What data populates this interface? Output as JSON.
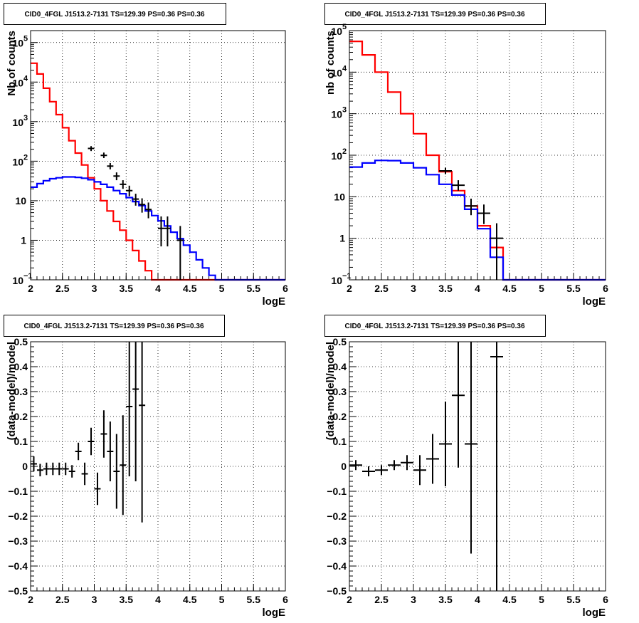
{
  "chart_data": [
    {
      "type": "line",
      "title": "CID0_4FGL J1513.2-7131 TS=129.39 PS=0.36 PS=0.36",
      "xlabel": "logE",
      "ylabel": "Nb of counts",
      "xlim": [
        2,
        6
      ],
      "ylim": [
        0.1,
        200000
      ],
      "log_y": true,
      "grid": true,
      "x_ticks": [
        "2",
        "2.5",
        "3",
        "3.5",
        "4",
        "4.5",
        "5",
        "5.5",
        "6"
      ],
      "y_ticks": [
        {
          "value": 0.1,
          "base": "10",
          "exp": "−1"
        },
        {
          "value": 1,
          "text": "1"
        },
        {
          "value": 10,
          "text": "10"
        },
        {
          "value": 100,
          "base": "10",
          "exp": "2"
        },
        {
          "value": 1000,
          "base": "10",
          "exp": "3"
        },
        {
          "value": 10000,
          "base": "10",
          "exp": "4"
        },
        {
          "value": 100000,
          "base": "10",
          "exp": "5"
        }
      ],
      "bin_width": 0.1,
      "series": [
        {
          "color": "#ff0000",
          "kind": "step",
          "values": [
            30000,
            16000,
            7000,
            3200,
            1500,
            700,
            330,
            160,
            80,
            38,
            20,
            10,
            5.5,
            3,
            1.8,
            1,
            0.55,
            0.3,
            0.17,
            0.1,
            0.1,
            0.1,
            0.1,
            0.1,
            0.1,
            0.1,
            0.1,
            0.1,
            0.1,
            0.1,
            0.1,
            0.1,
            0.1,
            0.1,
            0.1,
            0.1,
            0.1,
            0.1,
            0.1,
            0.1
          ]
        },
        {
          "color": "#0000ff",
          "kind": "step",
          "values": [
            22,
            27,
            32,
            36,
            38,
            40,
            40,
            39,
            37,
            34,
            30,
            26,
            22,
            18,
            15,
            12,
            9.5,
            7.5,
            5.5,
            4.2,
            3.1,
            2.3,
            1.6,
            1.1,
            0.75,
            0.5,
            0.32,
            0.2,
            0.13,
            0.1,
            0.1,
            0.1,
            0.1,
            0.1,
            0.1,
            0.1,
            0.1,
            0.1,
            0.1,
            0.1
          ]
        },
        {
          "color": "#000000",
          "kind": "errorbar",
          "points": [
            {
              "x": 2.95,
              "y": 210,
              "lo": 180,
              "hi": 240
            },
            {
              "x": 3.15,
              "y": 140,
              "lo": 120,
              "hi": 165
            },
            {
              "x": 3.25,
              "y": 75,
              "lo": 62,
              "hi": 90
            },
            {
              "x": 3.35,
              "y": 42,
              "lo": 33,
              "hi": 52
            },
            {
              "x": 3.45,
              "y": 26,
              "lo": 20,
              "hi": 33
            },
            {
              "x": 3.55,
              "y": 18,
              "lo": 13,
              "hi": 24
            },
            {
              "x": 3.65,
              "y": 11,
              "lo": 7.5,
              "hi": 15
            },
            {
              "x": 3.75,
              "y": 8,
              "lo": 5,
              "hi": 11.5
            },
            {
              "x": 3.85,
              "y": 6,
              "lo": 3.6,
              "hi": 9
            },
            {
              "x": 4.05,
              "y": 2,
              "lo": 0.7,
              "hi": 4
            },
            {
              "x": 4.15,
              "y": 2,
              "lo": 0.7,
              "hi": 4
            },
            {
              "x": 4.35,
              "y": 1,
              "lo": 0.1,
              "hi": 2.3
            }
          ]
        }
      ]
    },
    {
      "type": "line",
      "title": "CID0_4FGL J1513.2-7131 TS=129.39 PS=0.36 PS=0.36",
      "xlabel": "logE",
      "ylabel": "nb of counts",
      "xlim": [
        2,
        6
      ],
      "ylim": [
        0.1,
        100000
      ],
      "log_y": true,
      "grid": true,
      "x_ticks": [
        "2",
        "2.5",
        "3",
        "3.5",
        "4",
        "4.5",
        "5",
        "5.5",
        "6"
      ],
      "y_ticks": [
        {
          "value": 0.1,
          "base": "10",
          "exp": "−1"
        },
        {
          "value": 1,
          "text": "1"
        },
        {
          "value": 10,
          "text": "10"
        },
        {
          "value": 100,
          "base": "10",
          "exp": "2"
        },
        {
          "value": 1000,
          "base": "10",
          "exp": "3"
        },
        {
          "value": 10000,
          "base": "10",
          "exp": "4"
        },
        {
          "value": 100000,
          "base": "10",
          "exp": "5"
        }
      ],
      "bin_width": 0.2,
      "series": [
        {
          "color": "#ff0000",
          "kind": "step",
          "values": [
            55000,
            26000,
            10000,
            3300,
            1000,
            330,
            100,
            40,
            14,
            6,
            2,
            0.6,
            0.1,
            0.1,
            0.1,
            0.1,
            0.1,
            0.1,
            0.1,
            0.1
          ]
        },
        {
          "color": "#0000ff",
          "kind": "step",
          "values": [
            52,
            65,
            75,
            74,
            65,
            50,
            34,
            20,
            11,
            5,
            1.7,
            0.35,
            0.1,
            0.1,
            0.1,
            0.1,
            0.1,
            0.1,
            0.1,
            0.1
          ]
        },
        {
          "color": "#000000",
          "kind": "errorbar",
          "points": [
            {
              "x": 3.5,
              "y": 42,
              "lo": 35,
              "hi": 50
            },
            {
              "x": 3.7,
              "y": 19,
              "lo": 14,
              "hi": 25
            },
            {
              "x": 3.9,
              "y": 6,
              "lo": 3.6,
              "hi": 9
            },
            {
              "x": 4.1,
              "y": 4,
              "lo": 2.2,
              "hi": 6.5
            },
            {
              "x": 4.3,
              "y": 1,
              "lo": 0.1,
              "hi": 2.3
            }
          ]
        }
      ]
    },
    {
      "type": "scatter",
      "title": "CID0_4FGL J1513.2-7131 TS=129.39 PS=0.36 PS=0.36",
      "xlabel": "logE",
      "ylabel": "(data-model)/model",
      "xlim": [
        2,
        6
      ],
      "ylim": [
        -0.5,
        0.5
      ],
      "grid": true,
      "x_ticks": [
        "2",
        "2.5",
        "3",
        "3.5",
        "4",
        "4.5",
        "5",
        "5.5",
        "6"
      ],
      "y_ticks": [
        "−0.5",
        "−0.4",
        "−0.3",
        "−0.2",
        "−0.1",
        "0",
        "0.1",
        "0.2",
        "0.3",
        "0.4",
        "0.5"
      ],
      "points": [
        {
          "x": 2.05,
          "y": 0.01,
          "err": 0.03
        },
        {
          "x": 2.15,
          "y": -0.015,
          "err": 0.025
        },
        {
          "x": 2.25,
          "y": -0.01,
          "err": 0.025
        },
        {
          "x": 2.35,
          "y": -0.01,
          "err": 0.025
        },
        {
          "x": 2.45,
          "y": -0.01,
          "err": 0.025
        },
        {
          "x": 2.55,
          "y": -0.01,
          "err": 0.025
        },
        {
          "x": 2.65,
          "y": -0.02,
          "err": 0.025
        },
        {
          "x": 2.75,
          "y": 0.06,
          "err": 0.035
        },
        {
          "x": 2.85,
          "y": -0.03,
          "err": 0.045
        },
        {
          "x": 2.95,
          "y": 0.1,
          "err": 0.055
        },
        {
          "x": 3.05,
          "y": -0.09,
          "err": 0.065
        },
        {
          "x": 3.15,
          "y": 0.13,
          "err": 0.095
        },
        {
          "x": 3.25,
          "y": 0.06,
          "err": 0.12
        },
        {
          "x": 3.35,
          "y": -0.02,
          "err": 0.15
        },
        {
          "x": 3.45,
          "y": 0.005,
          "err": 0.2
        },
        {
          "x": 3.55,
          "y": 0.24,
          "err": 0.28
        },
        {
          "x": 3.65,
          "y": 0.31,
          "err": 0.37
        },
        {
          "x": 3.75,
          "y": 0.245,
          "err": 0.47
        }
      ]
    },
    {
      "type": "scatter",
      "title": "CID0_4FGL J1513.2-7131 TS=129.39 PS=0.36 PS=0.36",
      "xlabel": "logE",
      "ylabel": "(data-model)/model",
      "xlim": [
        2,
        6
      ],
      "ylim": [
        -0.5,
        0.5
      ],
      "grid": true,
      "x_ticks": [
        "2",
        "2.5",
        "3",
        "3.5",
        "4",
        "4.5",
        "5",
        "5.5",
        "6"
      ],
      "y_ticks": [
        "−0.5",
        "−0.4",
        "−0.3",
        "−0.2",
        "−0.1",
        "0",
        "0.1",
        "0.2",
        "0.3",
        "0.4",
        "0.5"
      ],
      "points": [
        {
          "x": 2.1,
          "y": 0.005,
          "err": 0.02
        },
        {
          "x": 2.3,
          "y": -0.02,
          "err": 0.02
        },
        {
          "x": 2.5,
          "y": -0.015,
          "err": 0.02
        },
        {
          "x": 2.7,
          "y": 0.005,
          "err": 0.02
        },
        {
          "x": 2.9,
          "y": 0.015,
          "err": 0.03
        },
        {
          "x": 3.1,
          "y": -0.015,
          "err": 0.06
        },
        {
          "x": 3.3,
          "y": 0.03,
          "err": 0.1
        },
        {
          "x": 3.5,
          "y": 0.09,
          "err": 0.17
        },
        {
          "x": 3.7,
          "y": 0.285,
          "err": 0.29
        },
        {
          "x": 3.9,
          "y": 0.09,
          "err": 0.44
        },
        {
          "x": 4.3,
          "y": 0.44,
          "err": 1.0
        }
      ]
    }
  ]
}
